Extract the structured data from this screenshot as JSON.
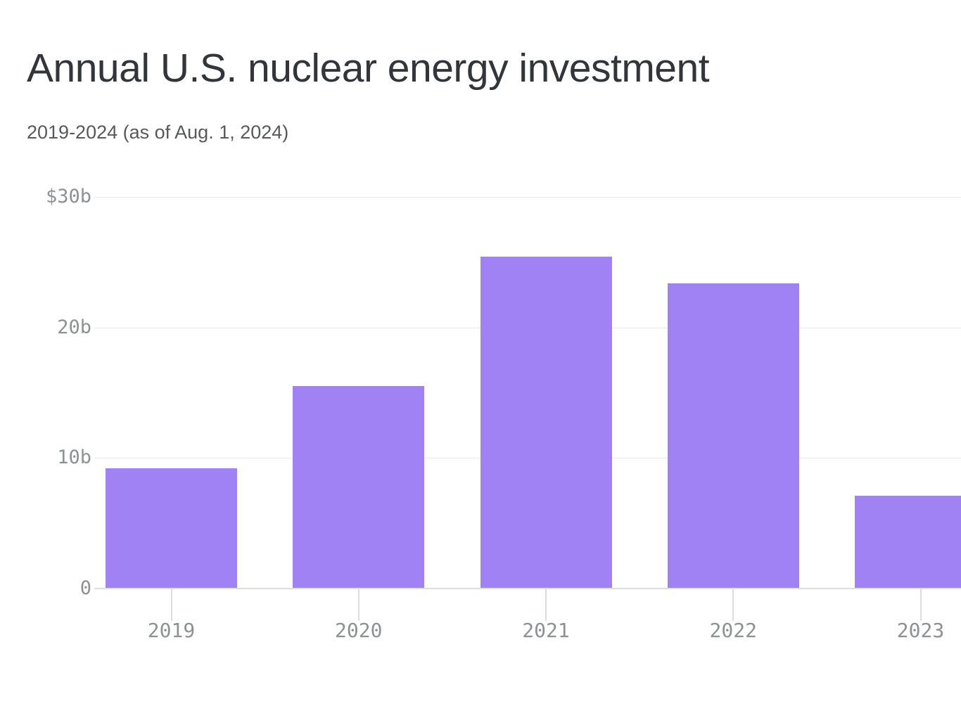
{
  "header": {
    "title": "Annual U.S. nuclear energy investment",
    "subtitle": "2019-2024 (as of Aug. 1, 2024)"
  },
  "chart_data": {
    "type": "bar",
    "title": "Annual U.S. nuclear energy investment",
    "subtitle": "2019-2024 (as of Aug. 1, 2024)",
    "categories": [
      "2019",
      "2020",
      "2021",
      "2022",
      "2023"
    ],
    "values": [
      9.2,
      15.5,
      25.4,
      23.4,
      7.1
    ],
    "value_unit": "billions of US dollars",
    "xlabel": "",
    "ylabel": "",
    "ylim": [
      0,
      30
    ],
    "yticks": [
      {
        "value": 0,
        "label": "0"
      },
      {
        "value": 10,
        "label": "10b"
      },
      {
        "value": 20,
        "label": "20b"
      },
      {
        "value": 30,
        "label": "$30b"
      }
    ],
    "grid": "horizontal",
    "legend": "none",
    "bar_color": "#a082f5",
    "last_bar_clipped_by_right_edge": true
  },
  "colors": {
    "background": "#ffffff",
    "title": "#323539",
    "subtitle": "#56595c",
    "tick_label": "#8e9194",
    "gridline": "#e7e8e9",
    "axis_line": "#dcddde",
    "bar": "#a082f5"
  }
}
